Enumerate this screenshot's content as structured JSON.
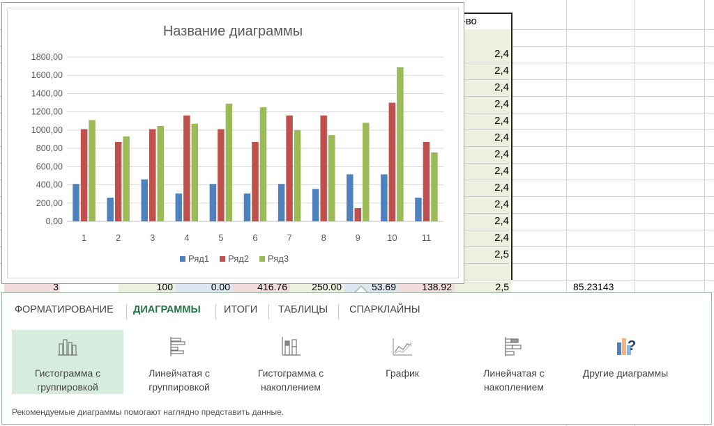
{
  "sheet": {
    "header_label": "л-во",
    "g_values": [
      "2,4",
      "2,4",
      "2,4",
      "2,4",
      "2,4",
      "2,4",
      "2,4",
      "2,4",
      "2,4",
      "2,4",
      "2,4",
      "2,4",
      "2,5"
    ],
    "row14": {
      "a": "3",
      "c": "100",
      "d": "0.00",
      "e": "416.76",
      "f": "250.00",
      "g": "53.69",
      "h": "138.92",
      "i": "2,5",
      "k": "85.23143"
    }
  },
  "chart_data": {
    "type": "bar",
    "title": "Название диаграммы",
    "categories": [
      "1",
      "2",
      "3",
      "4",
      "5",
      "6",
      "7",
      "8",
      "9",
      "10",
      "11"
    ],
    "series": [
      {
        "name": "Ряд1",
        "color": "#4f81bd",
        "values": [
          410,
          260,
          460,
          305,
          410,
          305,
          410,
          355,
          515,
          515,
          260
        ]
      },
      {
        "name": "Ряд2",
        "color": "#c0504d",
        "values": [
          1010,
          870,
          1010,
          1160,
          1010,
          870,
          1160,
          1160,
          145,
          1300,
          870
        ]
      },
      {
        "name": "Ряд3",
        "color": "#9bbb59",
        "values": [
          1110,
          930,
          1045,
          1070,
          1290,
          1250,
          1000,
          945,
          1080,
          1690,
          755
        ]
      }
    ],
    "ylim": [
      0,
      1800
    ],
    "yticks": [
      "0,00",
      "200,00",
      "400,00",
      "600,00",
      "800,00",
      "1000,00",
      "1200,00",
      "1400,00",
      "1600,00",
      "1800,00"
    ],
    "grid": true,
    "legend": "bottom"
  },
  "panel": {
    "tabs": [
      "ФОРМАТИРОВАНИЕ",
      "ДИАГРАММЫ",
      "ИТОГИ",
      "ТАБЛИЦЫ",
      "СПАРКЛАЙНЫ"
    ],
    "active_tab": "ДИАГРАММЫ",
    "options": [
      {
        "label1": "Гистограмма с",
        "label2": "группировкой",
        "icon": "clustered-column-icon"
      },
      {
        "label1": "Линейчатая с",
        "label2": "группировкой",
        "icon": "clustered-bar-icon"
      },
      {
        "label1": "Гистограмма с",
        "label2": "накоплением",
        "icon": "stacked-column-icon"
      },
      {
        "label1": "График",
        "label2": "",
        "icon": "line-chart-icon"
      },
      {
        "label1": "Линейчатая с",
        "label2": "накоплением",
        "icon": "stacked-bar-icon"
      },
      {
        "label1": "Другие диаграммы",
        "label2": "",
        "icon": "more-charts-icon"
      }
    ],
    "hint": "Рекомендуемые диаграммы помогают наглядно представить данные.",
    "accent_color": "#217346"
  }
}
